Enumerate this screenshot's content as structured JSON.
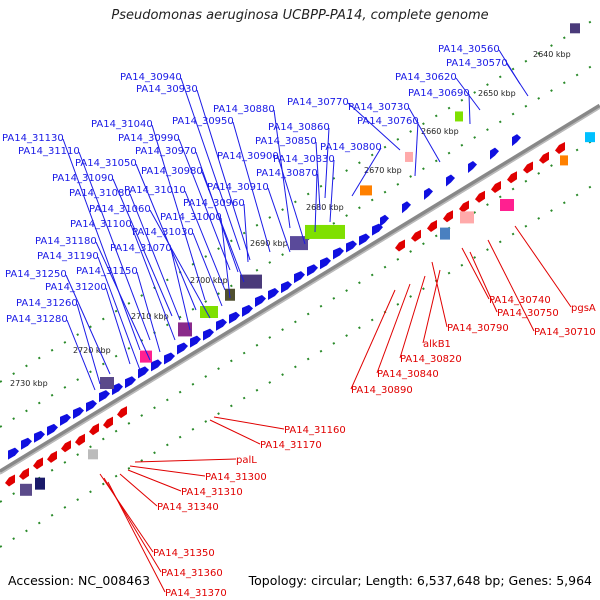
{
  "title": "Pseudomonas aeruginosa UCBPP-PA14, complete genome",
  "footer": {
    "accession": "Accession: NC_008463",
    "topology": "Topology: circular; Length: 6,537,648 bp; Genes: 5,964"
  },
  "colors": {
    "forward_label": "#1a1ae6",
    "reverse_label": "#e00000",
    "backbone": "#808080"
  },
  "kbp_ticks": [
    "2640 kbp",
    "2650 kbp",
    "2660 kbp",
    "2670 kbp",
    "2680 kbp",
    "2690 kbp",
    "2700 kbp",
    "2710 kbp",
    "2720 kbp",
    "2730 kbp"
  ],
  "forward_genes": [
    "PA14_30560",
    "PA14_30570",
    "PA14_30620",
    "PA14_30690",
    "PA14_30730",
    "PA14_30760",
    "PA14_30770",
    "PA14_30800",
    "PA14_30830",
    "PA14_30850",
    "PA14_30860",
    "PA14_30870",
    "PA14_30880",
    "PA14_30900",
    "PA14_30910",
    "PA14_30930",
    "PA14_30940",
    "PA14_30950",
    "PA14_30960",
    "PA14_30970",
    "PA14_30980",
    "PA14_30990",
    "PA14_31000",
    "PA14_31010",
    "PA14_31030",
    "PA14_31040",
    "PA14_31050",
    "PA14_31060",
    "PA14_31070",
    "PA14_31080",
    "PA14_31090",
    "PA14_31100",
    "PA14_31110",
    "PA14_31130",
    "PA14_31150",
    "PA14_31180",
    "PA14_31190",
    "PA14_31200",
    "PA14_31250",
    "PA14_31260",
    "PA14_31280"
  ],
  "reverse_genes": [
    "pgsA",
    "PA14_30740",
    "PA14_30750",
    "PA14_30710",
    "PA14_30790",
    "alkB1",
    "PA14_30820",
    "PA14_30840",
    "PA14_30890",
    "PA14_31160",
    "PA14_31170",
    "palL",
    "PA14_31300",
    "PA14_31310",
    "PA14_31340",
    "PA14_31350",
    "PA14_31360",
    "PA14_31370"
  ]
}
